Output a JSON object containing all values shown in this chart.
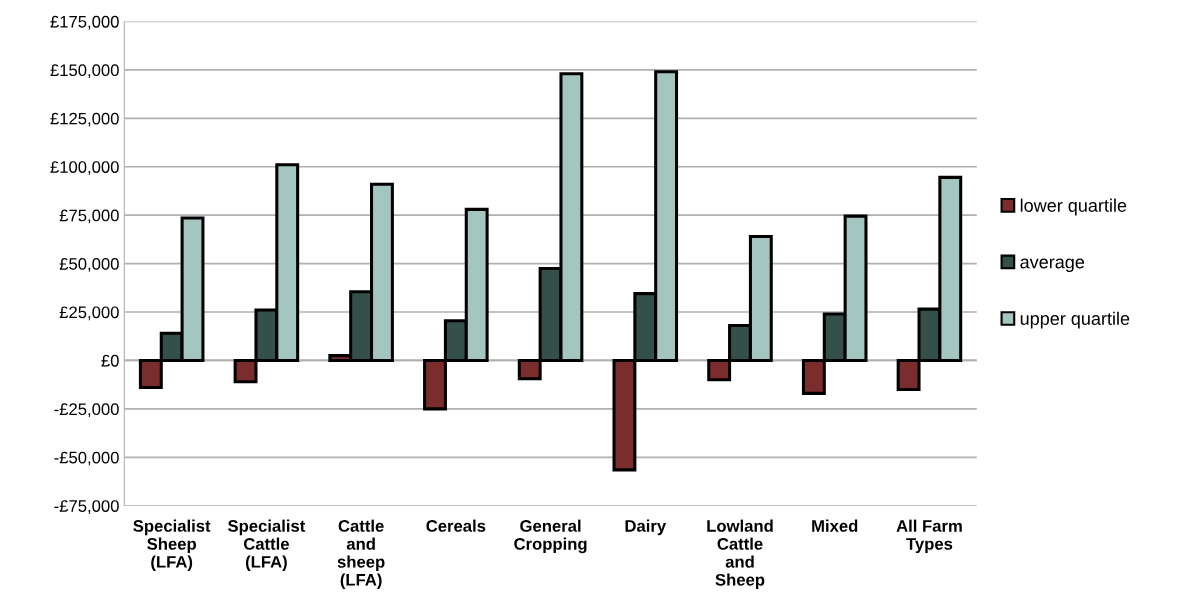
{
  "chart_data": {
    "type": "bar",
    "categories": [
      "Specialist\nSheep\n(LFA)",
      "Specialist\nCattle\n(LFA)",
      "Cattle\nand\nsheep\n(LFA)",
      "Cereals",
      "General\nCropping",
      "Dairy",
      "Lowland\nCattle\nand\nSheep",
      "Mixed",
      "All Farm\nTypes"
    ],
    "series": [
      {
        "name": "lower quartile",
        "color": "#7b2c2c",
        "values": [
          -14000,
          -11000,
          2500,
          -25000,
          -9500,
          -56500,
          -10000,
          -17000,
          -15000
        ]
      },
      {
        "name": "average",
        "color": "#33504a",
        "values": [
          14000,
          26000,
          35500,
          20500,
          47500,
          34500,
          18000,
          24000,
          26500
        ]
      },
      {
        "name": "upper quartile",
        "color": "#a4c6c0",
        "values": [
          73500,
          101000,
          91000,
          78000,
          148000,
          149000,
          64000,
          74500,
          94500
        ]
      }
    ],
    "ylim": [
      -75000,
      175000
    ],
    "yticks": [
      {
        "value": -75000,
        "label": "-£75,000"
      },
      {
        "value": -50000,
        "label": "-£50,000"
      },
      {
        "value": -25000,
        "label": "-£25,000"
      },
      {
        "value": 0,
        "label": "£0"
      },
      {
        "value": 25000,
        "label": "£25,000"
      },
      {
        "value": 50000,
        "label": "£50,000"
      },
      {
        "value": 75000,
        "label": "£75,000"
      },
      {
        "value": 100000,
        "label": "£100,000"
      },
      {
        "value": 125000,
        "label": "£125,000"
      },
      {
        "value": 150000,
        "label": "£150,000"
      },
      {
        "value": 175000,
        "label": "£175,000"
      }
    ],
    "grid": "y",
    "legend": "right"
  }
}
